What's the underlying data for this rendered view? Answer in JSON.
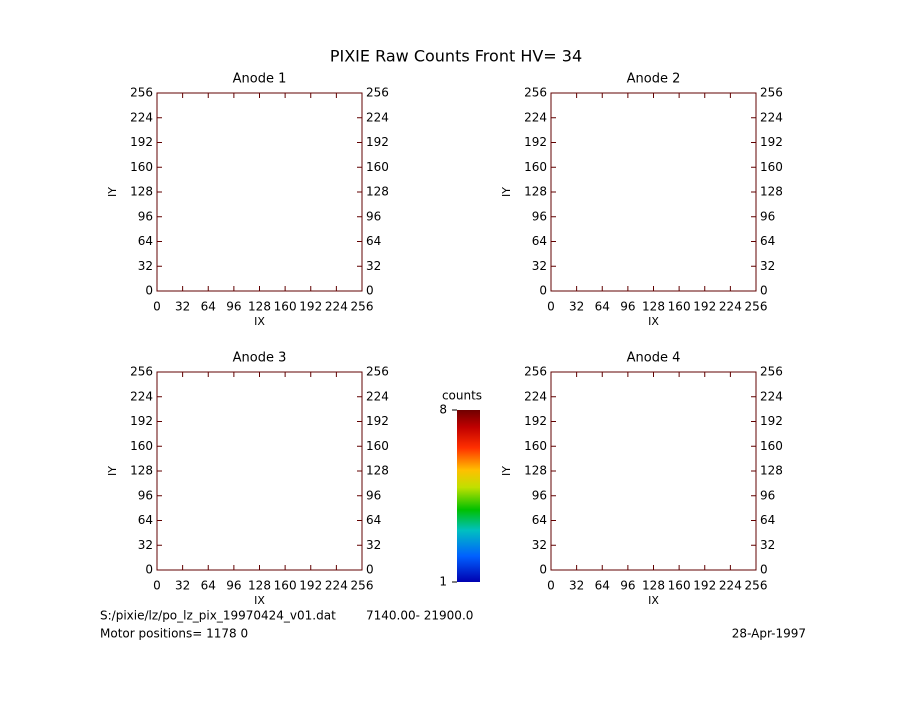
{
  "title": "PIXIE Raw Counts Front HV= 34",
  "chart_data": [
    {
      "type": "heatmap",
      "title": "Anode 1",
      "xlabel": "IX",
      "ylabel": "IY",
      "xlim": [
        0,
        256
      ],
      "xticks": [
        0,
        32,
        64,
        96,
        128,
        160,
        192,
        224,
        256
      ],
      "ylim": [
        0,
        256
      ],
      "yticks": [
        0,
        32,
        64,
        96,
        128,
        160,
        192,
        224,
        256
      ],
      "y2lim": [
        0,
        256
      ],
      "y2ticks": [
        0,
        32,
        64,
        96,
        128,
        160,
        192,
        224,
        256
      ]
    },
    {
      "type": "heatmap",
      "title": "Anode 2",
      "xlabel": "IX",
      "ylabel": "IY",
      "xlim": [
        0,
        256
      ],
      "xticks": [
        0,
        32,
        64,
        96,
        128,
        160,
        192,
        224,
        256
      ],
      "ylim": [
        0,
        256
      ],
      "yticks": [
        0,
        32,
        64,
        96,
        128,
        160,
        192,
        224,
        256
      ],
      "y2lim": [
        0,
        256
      ],
      "y2ticks": [
        0,
        32,
        64,
        96,
        128,
        160,
        192,
        224,
        256
      ]
    },
    {
      "type": "heatmap",
      "title": "Anode 3",
      "xlabel": "IX",
      "ylabel": "IY",
      "xlim": [
        0,
        256
      ],
      "xticks": [
        0,
        32,
        64,
        96,
        128,
        160,
        192,
        224,
        256
      ],
      "ylim": [
        0,
        256
      ],
      "yticks": [
        0,
        32,
        64,
        96,
        128,
        160,
        192,
        224,
        256
      ],
      "y2lim": [
        0,
        256
      ],
      "y2ticks": [
        0,
        32,
        64,
        96,
        128,
        160,
        192,
        224,
        256
      ]
    },
    {
      "type": "heatmap",
      "title": "Anode 4",
      "xlabel": "IX",
      "ylabel": "IY",
      "xlim": [
        0,
        256
      ],
      "xticks": [
        0,
        32,
        64,
        96,
        128,
        160,
        192,
        224,
        256
      ],
      "ylim": [
        0,
        256
      ],
      "yticks": [
        0,
        32,
        64,
        96,
        128,
        160,
        192,
        224,
        256
      ],
      "y2lim": [
        0,
        256
      ],
      "y2ticks": [
        0,
        32,
        64,
        96,
        128,
        160,
        192,
        224,
        256
      ]
    }
  ],
  "colorbar": {
    "label": "counts",
    "lim": [
      1,
      8
    ],
    "ticks": [
      1,
      8
    ]
  },
  "footer": {
    "file": "S:/pixie/lz/po_lz_pix_19970424_v01.dat",
    "range": "7140.00- 21900.0",
    "motor": "Motor positions= 1178 0",
    "date": "28-Apr-1997"
  }
}
